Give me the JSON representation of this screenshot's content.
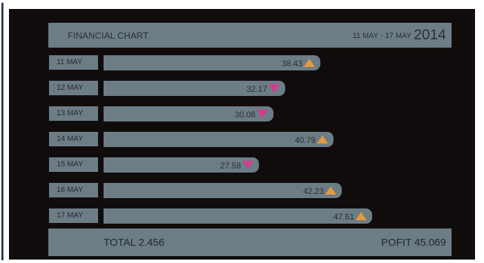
{
  "header": {
    "title": "FINANCIAL CHART",
    "date_range": "11 MAY - 17 MAY",
    "year": "2014"
  },
  "footer": {
    "total": "TOTAL 2.456",
    "profit": "POFIT 45.069"
  },
  "colors": {
    "up": "#e59a3e",
    "down": "#d43b8c",
    "bar": "#6d7d86",
    "background": "#110c0c"
  },
  "chart_data": {
    "type": "bar",
    "orientation": "horizontal",
    "title": "FINANCIAL CHART",
    "categories": [
      "11 MAY",
      "12 MAY",
      "13 MAY",
      "14 MAY",
      "15 MAY",
      "16 MAY",
      "17 MAY"
    ],
    "values": [
      38.43,
      32.17,
      30.08,
      40.79,
      27.58,
      42.23,
      47.61
    ],
    "labels": [
      "38.43",
      "32.17",
      "30.08",
      "40.79",
      "27.58",
      "42.23",
      "47.61"
    ],
    "trend": [
      "up",
      "down",
      "down",
      "up",
      "down",
      "up",
      "up"
    ],
    "xlim": [
      0,
      58
    ],
    "grid": false
  }
}
